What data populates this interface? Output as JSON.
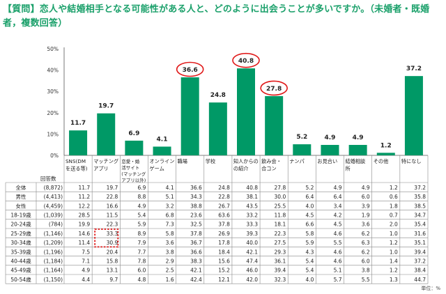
{
  "title": "【質問】恋人や結婚相手となる可能性がある人と、どのように出会うことが多いですか。（未婚者・既婚者，複数回答）",
  "unit_label": "単位：%",
  "accent_color": "#009966",
  "highlight_color": "#e01818",
  "chart_data": {
    "type": "bar",
    "title": "【質問】恋人や結婚相手となる可能性がある人と、どのように出会うことが多いですか。（未婚者・既婚者，複数回答）",
    "ylim": [
      0,
      50
    ],
    "yticks": [
      "0%",
      "10%",
      "20%",
      "30%",
      "40%",
      "50%"
    ],
    "categories": [
      [
        "SNS(DM",
        "を送る等)"
      ],
      [
        "マッチング",
        "アプリ"
      ],
      [
        "恋愛・婚",
        "活サイト",
        "(マッチング",
        "アプリ以外)"
      ],
      [
        "オンライン",
        "ゲーム"
      ],
      [
        "職場"
      ],
      [
        "学校"
      ],
      [
        "知人からの",
        "の紹介"
      ],
      [
        "飲み会・",
        "合コン"
      ],
      [
        "ナンパ"
      ],
      [
        "お見合い"
      ],
      [
        "結婚相談",
        "所"
      ],
      [
        "その他"
      ],
      [
        "特になし"
      ]
    ],
    "values": [
      11.7,
      19.7,
      6.9,
      4.1,
      36.6,
      24.8,
      40.8,
      27.8,
      5.2,
      4.9,
      4.9,
      1.2,
      37.2
    ],
    "value_labels": [
      "11.7",
      "19.7",
      "6.9",
      "4.1",
      "36.6",
      "24.8",
      "40.8",
      "27.8",
      "5.2",
      "4.9",
      "4.9",
      "1.2",
      "37.2"
    ],
    "circled": [
      4,
      6,
      7
    ],
    "table": {
      "header_label": "回答数",
      "rows": [
        {
          "label": "全体",
          "n": "(8,872)",
          "values": [
            "11.7",
            "19.7",
            "6.9",
            "4.1",
            "36.6",
            "24.8",
            "40.8",
            "27.8",
            "5.2",
            "4.9",
            "4.9",
            "1.2",
            "37.2"
          ]
        },
        {
          "label": "男性",
          "n": "(4,413)",
          "values": [
            "11.2",
            "22.8",
            "8.8",
            "5.1",
            "34.3",
            "22.8",
            "38.1",
            "30.0",
            "6.4",
            "6.4",
            "6.0",
            "0.6",
            "35.8"
          ]
        },
        {
          "label": "女性",
          "n": "(4,459)",
          "values": [
            "12.2",
            "16.6",
            "4.9",
            "3.2",
            "38.8",
            "26.7",
            "43.5",
            "25.5",
            "4.0",
            "3.4",
            "3.9",
            "1.8",
            "38.5"
          ]
        },
        {
          "label": "18-19歳",
          "n": "(1,039)",
          "values": [
            "28.5",
            "11.5",
            "5.4",
            "6.8",
            "23.6",
            "63.6",
            "33.2",
            "11.8",
            "4.5",
            "4.2",
            "1.9",
            "0.7",
            "34.7"
          ]
        },
        {
          "label": "20-24歳",
          "n": "(784)",
          "values": [
            "19.9",
            "22.3",
            "5.9",
            "7.3",
            "32.5",
            "37.8",
            "33.3",
            "18.1",
            "6.6",
            "4.5",
            "3.6",
            "2.0",
            "35.4"
          ]
        },
        {
          "label": "25-29歳",
          "n": "(1,146)",
          "values": [
            "14.6",
            "33.3",
            "8.9",
            "5.8",
            "37.8",
            "26.9",
            "39.3",
            "22.3",
            "5.8",
            "4.6",
            "6.2",
            "1.0",
            "31.6"
          ]
        },
        {
          "label": "30-34歳",
          "n": "(1,209)",
          "values": [
            "11.4",
            "30.9",
            "7.9",
            "3.6",
            "36.7",
            "17.8",
            "40.0",
            "27.5",
            "5.9",
            "5.5",
            "6.3",
            "1.2",
            "35.1"
          ]
        },
        {
          "label": "35-39歳",
          "n": "(1,196)",
          "values": [
            "7.5",
            "20.4",
            "7.7",
            "3.8",
            "36.6",
            "18.4",
            "42.1",
            "29.3",
            "4.3",
            "4.6",
            "6.2",
            "1.0",
            "39.4"
          ]
        },
        {
          "label": "40-44歳",
          "n": "(1,184)",
          "values": [
            "7.1",
            "15.8",
            "7.8",
            "2.9",
            "38.3",
            "15.6",
            "47.4",
            "36.1",
            "5.4",
            "4.6",
            "6.0",
            "1.4",
            "37.2"
          ]
        },
        {
          "label": "45-49歳",
          "n": "(1,164)",
          "values": [
            "4.9",
            "13.1",
            "6.0",
            "2.5",
            "42.1",
            "15.2",
            "46.0",
            "39.4",
            "5.4",
            "5.1",
            "3.8",
            "1.2",
            "38.4"
          ]
        },
        {
          "label": "50-54歳",
          "n": "(1,150)",
          "values": [
            "4.4",
            "9.7",
            "4.8",
            "1.6",
            "42.4",
            "12.1",
            "42.0",
            "32.3",
            "4.0",
            "5.7",
            "5.5",
            "1.3",
            "44.7"
          ]
        }
      ],
      "highlight_box": {
        "column": 1,
        "rows": [
          5,
          6
        ]
      }
    }
  }
}
